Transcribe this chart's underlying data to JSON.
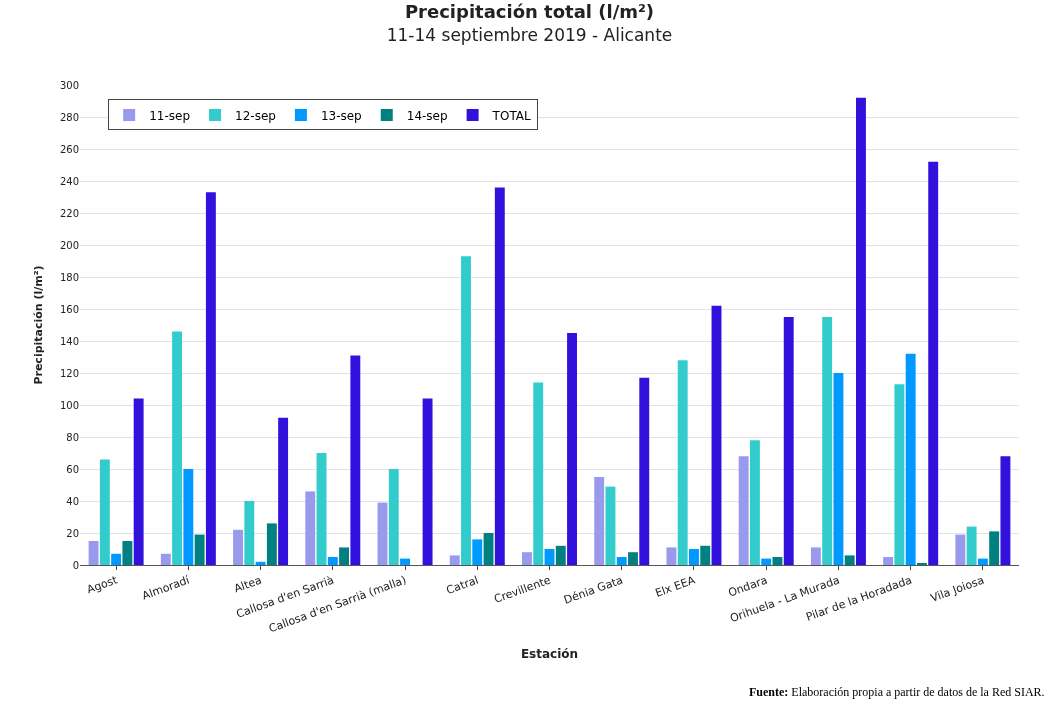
{
  "chart_data": {
    "type": "bar",
    "title": "Precipitación total (l/m²)",
    "subtitle": "11-14 septiembre 2019 - Alicante",
    "xlabel": "Estación",
    "ylabel": "Precipitación (l/m²)",
    "categories": [
      "Agost",
      "Almoradí",
      "Altea",
      "Callosa d'en Sarrià",
      "Callosa d'en Sarrià (malla)",
      "Catral",
      "Crevillente",
      "Dénia Gata",
      "Elx EEA",
      "Ondara",
      "Orihuela - La Murada",
      "Pilar de la Horadada",
      "Vila Joiosa"
    ],
    "series": [
      {
        "name": "11-sep",
        "color": "#9999ee",
        "values": [
          15,
          7,
          22,
          46,
          39,
          6,
          8,
          55,
          11,
          68,
          11,
          5,
          19
        ]
      },
      {
        "name": "12-sep",
        "color": "#33cccc",
        "values": [
          66,
          146,
          40,
          70,
          60,
          193,
          114,
          49,
          128,
          78,
          155,
          113,
          24
        ]
      },
      {
        "name": "13-sep",
        "color": "#0099ff",
        "values": [
          7,
          60,
          2,
          5,
          4,
          16,
          10,
          5,
          10,
          4,
          120,
          132,
          4
        ]
      },
      {
        "name": "14-sep",
        "color": "#008080",
        "values": [
          15,
          19,
          26,
          11,
          null,
          20,
          12,
          8,
          12,
          5,
          6,
          1,
          21
        ]
      },
      {
        "name": "TOTAL",
        "color": "#3311dd",
        "values": [
          104,
          233,
          92,
          131,
          104,
          236,
          145,
          117,
          162,
          155,
          292,
          252,
          68
        ]
      }
    ],
    "ylim": [
      0,
      300
    ],
    "yticks": [
      0,
      20,
      40,
      60,
      80,
      100,
      120,
      140,
      160,
      180,
      200,
      220,
      240,
      260,
      280,
      300
    ],
    "grid": "y",
    "legend": "top left",
    "annotations": [
      "Fuente: Elaboración propia a partir de datos de la Red SIAR."
    ]
  }
}
